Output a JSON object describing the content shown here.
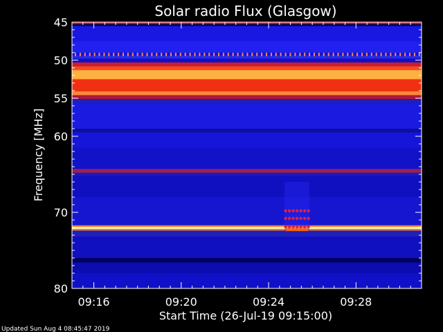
{
  "chart_data": {
    "type": "heatmap",
    "title": "Solar radio Flux (Glasgow)",
    "xlabel": "Start Time (26-Jul-19 09:15:00)",
    "ylabel": "Frequency [MHz]",
    "footer": "Updated Sun Aug  4 08:45:47 2019",
    "x_axis": {
      "unit": "minutes",
      "start_time": "09:15:00",
      "range_minutes": [
        0,
        16.0
      ],
      "tick_minutes": [
        1,
        5,
        9,
        13
      ],
      "tick_labels": [
        "09:16",
        "09:20",
        "09:24",
        "09:28"
      ],
      "minor_step_minutes": 0.5
    },
    "y_axis": {
      "unit": "MHz",
      "range": [
        45,
        80
      ],
      "inverted": true,
      "ticks": [
        45,
        50,
        55,
        60,
        70,
        80
      ],
      "tick_labels": [
        "45",
        "50",
        "55",
        "60",
        "70",
        "80"
      ],
      "minor_step": 1
    },
    "background_color": "#1010d8",
    "bands": [
      {
        "from": 45.0,
        "to": 45.25,
        "color": "#d02030"
      },
      {
        "from": 45.25,
        "to": 45.5,
        "color": "#000050"
      },
      {
        "from": 45.5,
        "to": 47.5,
        "color": "#1818e0"
      },
      {
        "from": 47.5,
        "to": 49.0,
        "color": "#2020f0"
      },
      {
        "from": 49.0,
        "to": 49.4,
        "color": "#1414d0"
      },
      {
        "from": 49.4,
        "to": 49.8,
        "color": "#2828e8"
      },
      {
        "from": 49.8,
        "to": 50.3,
        "color": "#1010c8"
      },
      {
        "from": 50.3,
        "to": 50.8,
        "color": "#c82030"
      },
      {
        "from": 50.8,
        "to": 51.3,
        "color": "#ff4818"
      },
      {
        "from": 51.3,
        "to": 52.5,
        "color": "#ffb040"
      },
      {
        "from": 52.5,
        "to": 54.1,
        "color": "#f03010"
      },
      {
        "from": 54.1,
        "to": 54.6,
        "color": "#ff8a38"
      },
      {
        "from": 54.6,
        "to": 55.1,
        "color": "#b01838"
      },
      {
        "from": 55.1,
        "to": 55.6,
        "color": "#2020b8"
      },
      {
        "from": 55.6,
        "to": 59.0,
        "color": "#1a1ae0"
      },
      {
        "from": 59.0,
        "to": 59.5,
        "color": "#0e0ea0"
      },
      {
        "from": 59.5,
        "to": 61.5,
        "color": "#1616d8"
      },
      {
        "from": 61.5,
        "to": 64.3,
        "color": "#1212c8"
      },
      {
        "from": 64.3,
        "to": 64.8,
        "color": "#a02050"
      },
      {
        "from": 64.8,
        "to": 65.2,
        "color": "#1a1ab8"
      },
      {
        "from": 65.2,
        "to": 68.0,
        "color": "#1010c0"
      },
      {
        "from": 68.0,
        "to": 71.7,
        "color": "#1616d0"
      },
      {
        "from": 71.7,
        "to": 71.9,
        "color": "#ff8020"
      },
      {
        "from": 71.9,
        "to": 72.2,
        "color": "#fff0a0"
      },
      {
        "from": 72.2,
        "to": 72.4,
        "color": "#ff8020"
      },
      {
        "from": 72.4,
        "to": 73.2,
        "color": "#2020b8"
      },
      {
        "from": 73.2,
        "to": 76.0,
        "color": "#1010c0"
      },
      {
        "from": 76.0,
        "to": 76.6,
        "color": "#000060"
      },
      {
        "from": 76.6,
        "to": 78.0,
        "color": "#0c0cb0"
      },
      {
        "from": 78.0,
        "to": 80.0,
        "color": "#1010c8"
      }
    ],
    "features": [
      {
        "name": "dotted line",
        "freq": 49.2,
        "color": "#ff8a40",
        "pattern": "dots"
      },
      {
        "name": "burst",
        "time_minutes": 10.3,
        "freq_range": [
          66.0,
          72.4
        ],
        "color": "#e02040"
      }
    ]
  }
}
